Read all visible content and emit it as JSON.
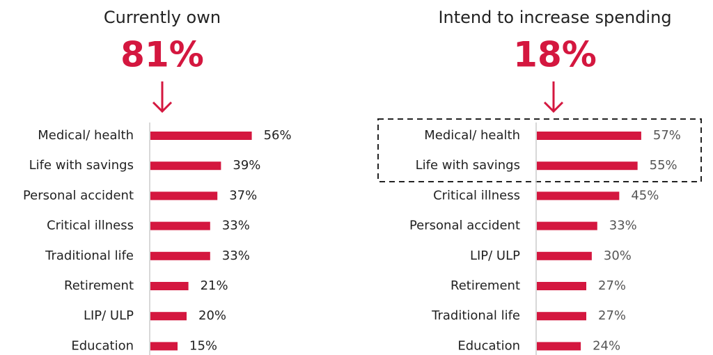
{
  "chart_data": [
    {
      "type": "bar",
      "title": "Currently own",
      "headline": "81%",
      "color": "#d4173f",
      "categories": [
        "Medical/ health",
        "Life with savings",
        "Personal accident",
        "Critical illness",
        "Traditional life",
        "Retirement",
        "LIP/ ULP",
        "Education"
      ],
      "values": [
        56,
        39,
        37,
        33,
        33,
        21,
        20,
        15
      ],
      "value_labels": [
        "56%",
        "39%",
        "37%",
        "33%",
        "33%",
        "21%",
        "20%",
        "15%"
      ]
    },
    {
      "type": "bar",
      "title": "Intend to increase spending",
      "headline": "18%",
      "color": "#d4173f",
      "categories": [
        "Medical/ health",
        "Life with savings",
        "Critical illness",
        "Personal accident",
        "LIP/ ULP",
        "Retirement",
        "Traditional life",
        "Education"
      ],
      "values": [
        57,
        55,
        45,
        33,
        30,
        27,
        27,
        24
      ],
      "value_labels": [
        "57%",
        "55%",
        "45%",
        "33%",
        "30%",
        "27%",
        "27%",
        "24%"
      ]
    }
  ]
}
